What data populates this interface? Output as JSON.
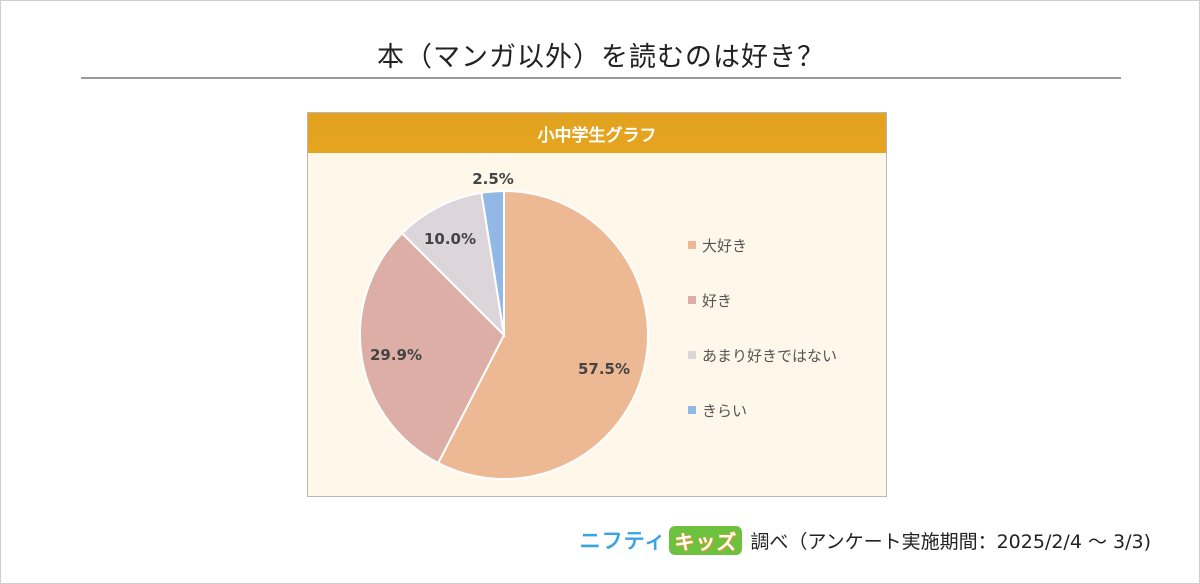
{
  "title": "本（マンガ以外）を読むのは好き？",
  "chart_header": "小中学生グラフ",
  "footer": {
    "logo_nifty": "ニフティ",
    "logo_kids": "キッズ",
    "survey_text": "調べ（アンケート実施期間：2025/2/4 ～ 3/3)"
  },
  "chart_data": {
    "type": "pie",
    "title": "小中学生グラフ",
    "unit": "%",
    "legend_position": "right",
    "slices": [
      {
        "label": "大好き",
        "value": 57.5,
        "display": "57.5%",
        "color": "#edb994"
      },
      {
        "label": "好き",
        "value": 29.9,
        "display": "29.9%",
        "color": "#dcaea5"
      },
      {
        "label": "あまり好きではない",
        "value": 10.0,
        "display": "10.0%",
        "color": "#dcd6da"
      },
      {
        "label": "きらい",
        "value": 2.5,
        "display": "2.5%",
        "color": "#92b8e6"
      }
    ]
  }
}
